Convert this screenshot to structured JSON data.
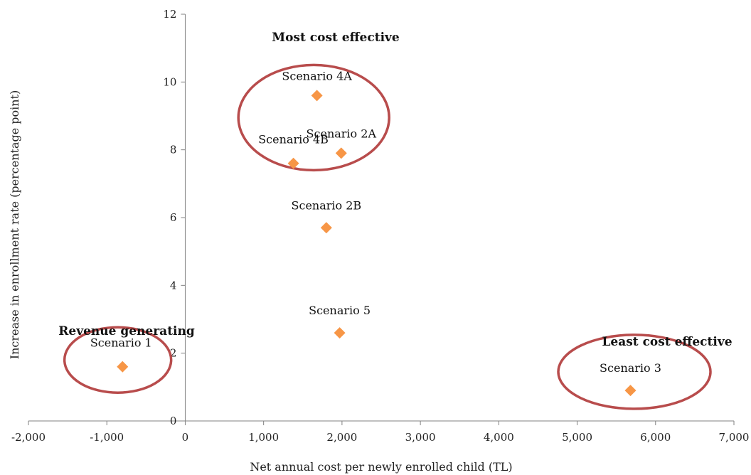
{
  "chart_data": {
    "type": "scatter",
    "xlabel": "Net annual cost per newly enrolled child (TL)",
    "ylabel": "Increase in enrollment rate (percentage point)",
    "xlim": [
      -2000,
      7000
    ],
    "ylim": [
      0,
      12
    ],
    "x_ticks": [
      -2000,
      -1000,
      0,
      1000,
      2000,
      3000,
      4000,
      5000,
      6000,
      7000
    ],
    "x_tick_labels": [
      "-2,000",
      "-1,000",
      "0",
      "1,000",
      "2,000",
      "3,000",
      "4,000",
      "5,000",
      "6,000",
      "7,000"
    ],
    "y_ticks": [
      0,
      2,
      4,
      6,
      8,
      10,
      12
    ],
    "y_tick_labels": [
      "0",
      "2",
      "4",
      "6",
      "8",
      "10",
      "12"
    ],
    "grid": false,
    "marker_color": "#F79646",
    "circle_color": "#B84C4C",
    "points": [
      {
        "label": "Scenario 1",
        "x": -800,
        "y": 1.6
      },
      {
        "label": "Scenario 4A",
        "x": 1680,
        "y": 9.6
      },
      {
        "label": "Scenario 2A",
        "x": 1990,
        "y": 7.9
      },
      {
        "label": "Scenario 4B",
        "x": 1380,
        "y": 7.6
      },
      {
        "label": "Scenario 2B",
        "x": 1800,
        "y": 5.7
      },
      {
        "label": "Scenario 5",
        "x": 1970,
        "y": 2.6
      },
      {
        "label": "Scenario 3",
        "x": 5680,
        "y": 0.9
      }
    ],
    "annotations": [
      {
        "text": "Most cost effective"
      },
      {
        "text": "Revenue generating"
      },
      {
        "text": "Least cost effective"
      }
    ]
  }
}
